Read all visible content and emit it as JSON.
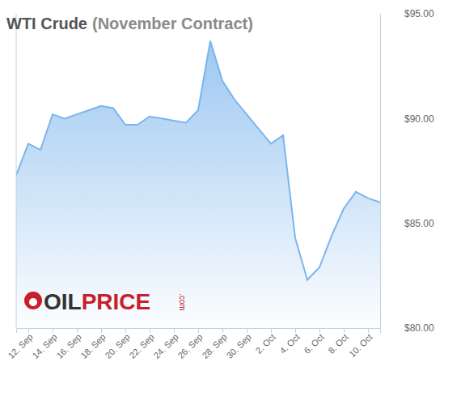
{
  "chart_data": {
    "type": "area",
    "title": "WTI Crude",
    "subtitle": "(November Contract)",
    "annotations": [
      "OIL",
      "PRICE",
      ".com"
    ],
    "categories": [
      null,
      "12. Sep",
      null,
      "14. Sep",
      null,
      "16. Sep",
      null,
      "18. Sep",
      null,
      "20. Sep",
      null,
      "22. Sep",
      null,
      "24. Sep",
      null,
      "26. Sep",
      null,
      "28. Sep",
      null,
      "30. Sep",
      null,
      "2. Oct",
      null,
      "4. Oct",
      null,
      "6. Oct",
      null,
      "8. Oct",
      null,
      "10. Oct",
      null
    ],
    "values": [
      87.3,
      88.8,
      88.5,
      90.2,
      90.0,
      90.2,
      90.4,
      90.6,
      90.5,
      89.7,
      89.7,
      90.1,
      90.0,
      89.9,
      89.8,
      90.4,
      93.7,
      91.8,
      90.9,
      90.2,
      89.5,
      88.8,
      89.2,
      84.3,
      82.3,
      82.9,
      84.4,
      85.7,
      86.5,
      86.2,
      86.0
    ],
    "color": "#7cb5ec",
    "ylim": [
      80,
      95
    ],
    "yticks": [
      {
        "value": 80,
        "label": "$80.00"
      },
      {
        "value": 85,
        "label": "$85.00"
      },
      {
        "value": 90,
        "label": "$90.00"
      },
      {
        "value": 95,
        "label": "$95.00"
      }
    ],
    "grid": false
  }
}
